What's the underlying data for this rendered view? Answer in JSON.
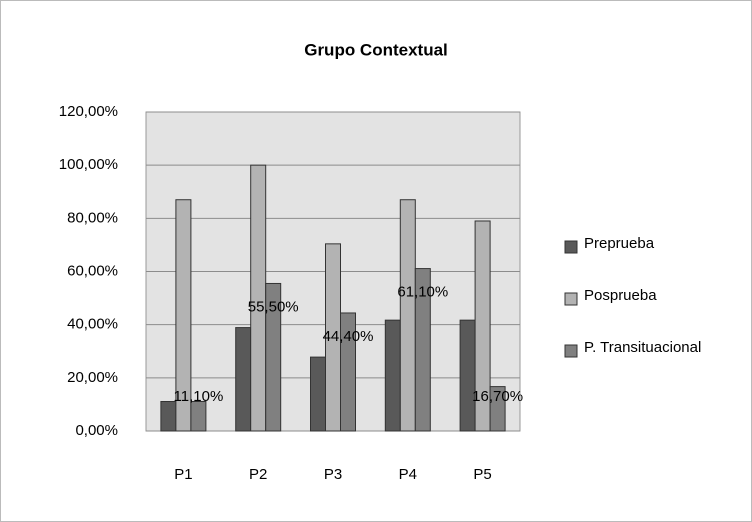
{
  "chart_data": {
    "type": "bar",
    "title": "Grupo Contextual",
    "categories": [
      "P1",
      "P2",
      "P3",
      "P4",
      "P5"
    ],
    "series": [
      {
        "name": "Preprueba",
        "color": "#595959",
        "values": [
          11.1,
          38.9,
          27.8,
          41.7,
          41.7
        ]
      },
      {
        "name": "Posprueba",
        "color": "#b3b3b3",
        "values": [
          87,
          100,
          70.4,
          87,
          79
        ]
      },
      {
        "name": "P. Transituacional",
        "color": "#808080",
        "values": [
          11.1,
          55.5,
          44.4,
          61.1,
          16.7
        ],
        "value_labels": [
          "11,10%",
          "55,50%",
          "44,40%",
          "61,10%",
          "16,70%"
        ]
      }
    ],
    "ylim": [
      0,
      120
    ],
    "yticks": [
      {
        "value": 0,
        "label": "0,00%"
      },
      {
        "value": 20,
        "label": "20,00%"
      },
      {
        "value": 40,
        "label": "40,00%"
      },
      {
        "value": 60,
        "label": "60,00%"
      },
      {
        "value": 80,
        "label": "80,00%"
      },
      {
        "value": 100,
        "label": "100,00%"
      },
      {
        "value": 120,
        "label": "120,00%"
      }
    ],
    "grid": true,
    "legend": "right"
  }
}
